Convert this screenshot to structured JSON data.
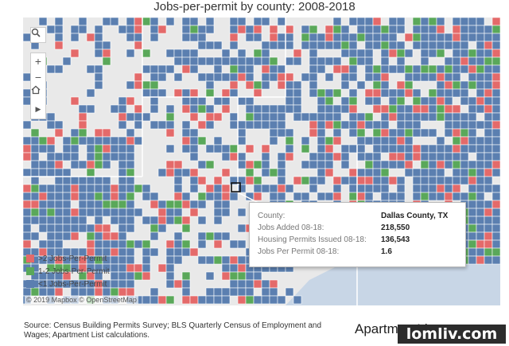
{
  "title": "Jobs-per-permit by county: 2008-2018",
  "colors": {
    "red": "#e46a6a",
    "green": "#5aa85a",
    "blue": "#5b7fb0",
    "land": "#e9e9e9",
    "water": "#c8d6e6"
  },
  "toolbar": {
    "search_icon": "search-icon",
    "zoom_in": "+",
    "zoom_out": "−",
    "home_icon": "home-icon",
    "play_icon": "▶"
  },
  "legend": {
    "items": [
      {
        "label": ">2 Jobs-Per-Permit",
        "color": "#e46a6a"
      },
      {
        "label": "1-2 Jobs-Per-Permit",
        "color": "#5aa85a"
      },
      {
        "label": "<1 Jobs-Per-Permit",
        "color": "#5b7fb0"
      }
    ]
  },
  "attribution": "© 2019 Mapbox  © OpenStreetMap",
  "tooltip": {
    "rows": [
      {
        "key": "County:",
        "value": "Dallas County, TX"
      },
      {
        "key": "Jobs Added 08-18:",
        "value": "218,550"
      },
      {
        "key": "Housing Permits Issued 08-18:",
        "value": "136,543"
      },
      {
        "key": "Jobs Per Permit 08-18:",
        "value": "1.6"
      }
    ]
  },
  "source": "Source: Census Building Permits Survey; BLS Quarterly Census of Employment and Wages; Apartment List calculations.",
  "brand": "ApartmentList",
  "watermark": "lomliv.com"
}
